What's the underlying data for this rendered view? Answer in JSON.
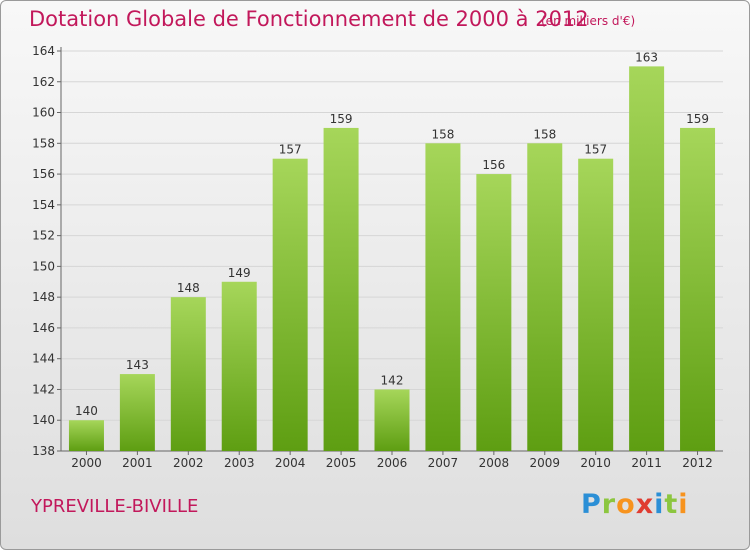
{
  "title": "Dotation Globale de Fonctionnement de 2000 à 2012",
  "subtitle": "(en milliers d'€)",
  "commune": "YPREVILLE-BIVILLE",
  "logo": {
    "letters": [
      "P",
      "r",
      "o",
      "x",
      "i",
      "t",
      "i"
    ],
    "colors": [
      "#2b8fd6",
      "#8cc63f",
      "#f7931e",
      "#e03c31",
      "#2b8fd6",
      "#8cc63f",
      "#f7931e"
    ]
  },
  "colors": {
    "bar_top": "#a6d65a",
    "bar_bottom": "#5e9e12",
    "title": "#c2185b",
    "grid": "#d6d6d6"
  },
  "chart_data": {
    "type": "bar",
    "categories": [
      "2000",
      "2001",
      "2002",
      "2003",
      "2004",
      "2005",
      "2006",
      "2007",
      "2008",
      "2009",
      "2010",
      "2011",
      "2012"
    ],
    "values": [
      140,
      143,
      148,
      149,
      157,
      159,
      142,
      158,
      156,
      158,
      157,
      163,
      159
    ],
    "ylim": [
      138,
      164
    ],
    "yticks": [
      138,
      140,
      142,
      144,
      146,
      148,
      150,
      152,
      154,
      156,
      158,
      160,
      162,
      164
    ],
    "grid": true,
    "xlabel": "",
    "ylabel": ""
  }
}
